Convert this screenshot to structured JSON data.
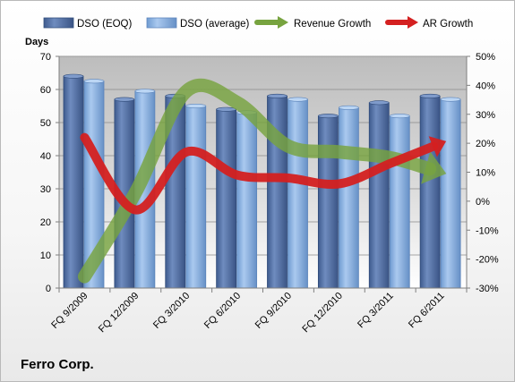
{
  "chart_data": {
    "type": "bar",
    "company": "Ferro Corp.",
    "categories": [
      "FQ 9/2009",
      "FQ 12/2009",
      "FQ 3/2010",
      "FQ 6/2010",
      "FQ 9/2010",
      "FQ 12/2010",
      "FQ 3/2011",
      "FQ 6/2011"
    ],
    "y_left": {
      "label": "Days",
      "ylim": [
        0,
        70
      ],
      "ticks": [
        "0",
        "10",
        "20",
        "30",
        "40",
        "50",
        "60",
        "70"
      ]
    },
    "y_right": {
      "ylim": [
        -30,
        50
      ],
      "ticks": [
        "-30%",
        "-20%",
        "-10%",
        "0%",
        "10%",
        "20%",
        "30%",
        "40%",
        "50%"
      ]
    },
    "bar_series": [
      {
        "name": "DSO (EOQ)",
        "color": "#5a77a8",
        "values": [
          64,
          57,
          58,
          54,
          58,
          52,
          56,
          58
        ]
      },
      {
        "name": "DSO (average)",
        "color": "#8fb4e0",
        "values": [
          62.5,
          59.5,
          55,
          53,
          57,
          54.5,
          52,
          57
        ]
      }
    ],
    "line_series": [
      {
        "name": "Revenue Growth",
        "color": "#77a33f",
        "axis": "right",
        "values": [
          -26,
          3,
          38,
          34,
          19,
          17,
          15,
          10
        ]
      },
      {
        "name": "AR Growth",
        "color": "#d42020",
        "axis": "right",
        "values": [
          22,
          -3,
          17,
          9,
          8,
          6,
          13,
          20
        ]
      }
    ],
    "grid": true,
    "legend_position": "top"
  }
}
